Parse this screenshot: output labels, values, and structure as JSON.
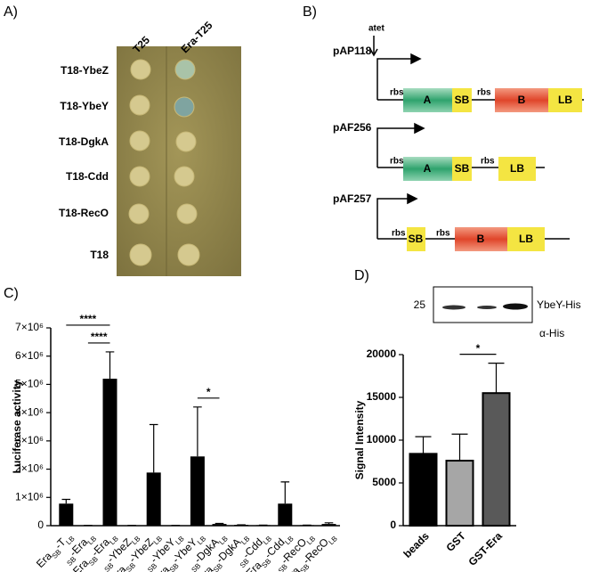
{
  "panel_a": {
    "label": "A)",
    "columns": [
      "T25",
      "Era-T25"
    ],
    "rows": [
      "T18-YbeZ",
      "T18-YbeY",
      "T18-DgkA",
      "T18-Cdd",
      "T18-RecO",
      "T18"
    ]
  },
  "panel_b": {
    "label": "B)",
    "constructs": [
      {
        "name": "pAP118",
        "promoter": "atet",
        "elements": [
          "rbs",
          "A",
          "SB",
          "rbs",
          "B",
          "LB"
        ]
      },
      {
        "name": "pAF256",
        "elements": [
          "rbs",
          "A",
          "SB",
          "rbs",
          "LB"
        ]
      },
      {
        "name": "pAF257",
        "elements": [
          "rbs",
          "SB",
          "rbs",
          "B",
          "LB"
        ]
      }
    ]
  },
  "chart_data": [
    {
      "type": "bar",
      "label": "C)",
      "y_label": "Luciferase activity",
      "categories": [
        [
          {
            "text": "Era"
          },
          {
            "sub": "SB"
          },
          {
            "text": "-T"
          },
          {
            "sub": "LB"
          }
        ],
        [
          {
            "sub": "SB"
          },
          {
            "text": "-Era"
          },
          {
            "sub": "LB"
          }
        ],
        [
          {
            "text": "Era"
          },
          {
            "sub": "SB"
          },
          {
            "text": "-Era"
          },
          {
            "sub": "LB"
          }
        ],
        [
          {
            "sub": "SB"
          },
          {
            "text": "-YbeZ"
          },
          {
            "sub": "LB"
          }
        ],
        [
          {
            "text": "Era"
          },
          {
            "sub": "SB"
          },
          {
            "text": "-YbeZ"
          },
          {
            "sub": "LB"
          }
        ],
        [
          {
            "sub": "SB"
          },
          {
            "text": "-YbeY"
          },
          {
            "sub": "LB"
          }
        ],
        [
          {
            "text": "Era"
          },
          {
            "sub": "SB"
          },
          {
            "text": "-YbeY"
          },
          {
            "sub": "LB"
          }
        ],
        [
          {
            "sub": "SB"
          },
          {
            "text": "-DgkA"
          },
          {
            "sub": "LB"
          }
        ],
        [
          {
            "text": "Era"
          },
          {
            "sub": "SB"
          },
          {
            "text": "-DgkA"
          },
          {
            "sub": "LB"
          }
        ],
        [
          {
            "sub": "SB"
          },
          {
            "text": "-Cdd"
          },
          {
            "sub": "LB"
          }
        ],
        [
          {
            "text": "Era"
          },
          {
            "sub": "SB"
          },
          {
            "text": "-Cdd"
          },
          {
            "sub": "LB"
          }
        ],
        [
          {
            "sub": "SB"
          },
          {
            "text": "-RecO"
          },
          {
            "sub": "LB"
          }
        ],
        [
          {
            "text": "Era"
          },
          {
            "sub": "SB"
          },
          {
            "text": "-RecO"
          },
          {
            "sub": "LB"
          }
        ]
      ],
      "values": [
        780000,
        10000,
        5200000,
        10000,
        1880000,
        10000,
        2450000,
        60000,
        30000,
        20000,
        780000,
        20000,
        60000
      ],
      "errors": [
        150000,
        0,
        950000,
        0,
        1700000,
        0,
        1750000,
        20000,
        0,
        0,
        770000,
        0,
        40000
      ],
      "color": "#000000",
      "ylim": [
        0,
        7000000
      ],
      "yticks": [
        0,
        {
          "value": 1000000,
          "label": "1×10⁶"
        },
        {
          "value": 2000000,
          "label": "2×10⁶"
        },
        {
          "value": 3000000,
          "label": "3×10⁶"
        },
        {
          "value": 4000000,
          "label": "4×10⁶"
        },
        {
          "value": 5000000,
          "label": "5×10⁶"
        },
        {
          "value": 6000000,
          "label": "6×10⁶"
        },
        {
          "value": 7000000,
          "label": "7×10⁶"
        }
      ],
      "annotations": [
        {
          "text": "****",
          "from": 0,
          "to": 2
        },
        {
          "text": "****",
          "from": 1,
          "to": 2
        },
        {
          "text": "*",
          "from": 6,
          "to": 7
        }
      ]
    },
    {
      "type": "bar",
      "label": "D)",
      "y_label": "Signal Intensity",
      "categories": [
        "beads",
        "GST",
        "GST-Era"
      ],
      "values": [
        8400,
        7600,
        15500
      ],
      "errors": [
        2000,
        3100,
        3500
      ],
      "colors": [
        "#000000",
        "#a6a6a6",
        "#595959"
      ],
      "ylim": [
        0,
        20000
      ],
      "yticks": [
        0,
        5000,
        10000,
        15000,
        20000
      ],
      "annotations": [
        {
          "text": "*",
          "from": 1,
          "to": 2
        }
      ],
      "blot": {
        "marker": "25",
        "band_label": "YbeY-His",
        "antibody": "α-His"
      }
    }
  ]
}
